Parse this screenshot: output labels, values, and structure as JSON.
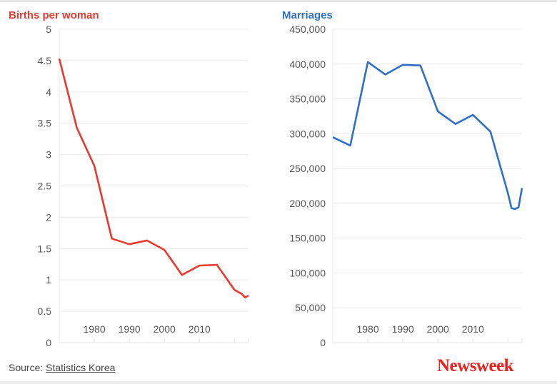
{
  "chart_data": [
    {
      "type": "line",
      "title": "Births per woman",
      "color": "#e8392f",
      "xlim": [
        1970,
        2024
      ],
      "ylim": [
        0,
        5
      ],
      "yticks": [
        "0",
        "0.5",
        "1",
        "1.5",
        "2",
        "2.5",
        "3",
        "3.5",
        "4",
        "4.5",
        "5"
      ],
      "ytick_values": [
        0,
        0.5,
        1,
        1.5,
        2,
        2.5,
        3,
        3.5,
        4,
        4.5,
        5
      ],
      "xticks": [
        "1980",
        "1990",
        "2000",
        "2010"
      ],
      "xtick_values": [
        1980,
        1990,
        2000,
        2010
      ],
      "grid": true,
      "x": [
        1970,
        1975,
        1980,
        1985,
        1990,
        1995,
        2000,
        2005,
        2010,
        2015,
        2020,
        2021,
        2022,
        2023,
        2024
      ],
      "y": [
        4.53,
        3.43,
        2.82,
        1.66,
        1.57,
        1.63,
        1.48,
        1.08,
        1.23,
        1.24,
        0.84,
        0.81,
        0.78,
        0.72,
        0.75
      ]
    },
    {
      "type": "line",
      "title": "Marriages",
      "color": "#2f6fc6",
      "xlim": [
        1970,
        2024
      ],
      "ylim": [
        0,
        450000
      ],
      "yticks": [
        "0",
        "50,000",
        "100,000",
        "150,000",
        "200,000",
        "250,000",
        "300,000",
        "350,000",
        "400,000",
        "450,000"
      ],
      "ytick_values": [
        0,
        50000,
        100000,
        150000,
        200000,
        250000,
        300000,
        350000,
        400000,
        450000
      ],
      "xticks": [
        "1980",
        "1990",
        "2000",
        "2010"
      ],
      "xtick_values": [
        1980,
        1990,
        2000,
        2010
      ],
      "grid": true,
      "x": [
        1970,
        1975,
        1980,
        1985,
        1990,
        1995,
        2000,
        2005,
        2010,
        2015,
        2020,
        2021,
        2022,
        2023,
        2024
      ],
      "y": [
        295000,
        283000,
        403000,
        385000,
        399000,
        398000,
        332000,
        314000,
        327000,
        303000,
        214000,
        193000,
        192000,
        194000,
        222000
      ]
    }
  ],
  "footer": {
    "source_label": "Source:",
    "source_link": "Statistics Korea",
    "logo": "Newsweek"
  }
}
